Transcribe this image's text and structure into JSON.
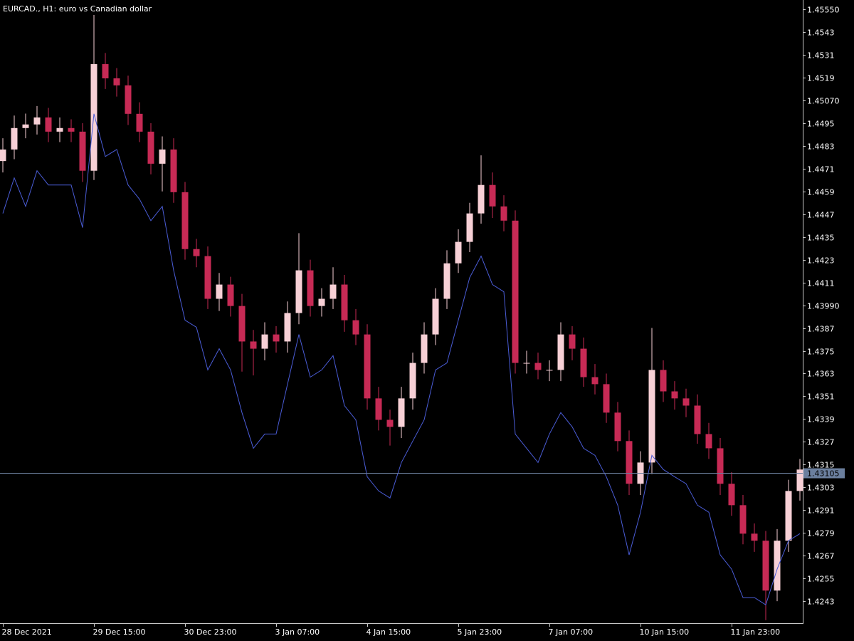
{
  "chart_data": {
    "type": "candlestick",
    "title": "EURCAD., H1:  euro vs Canadian dollar",
    "x": [
      0,
      4,
      8,
      12,
      16,
      20,
      24,
      28,
      32,
      36,
      40,
      44,
      48,
      52,
      56,
      60,
      64,
      68,
      72,
      76,
      80,
      84,
      88,
      92,
      96,
      100,
      104,
      108,
      112,
      116,
      120,
      124,
      128,
      132,
      136,
      140,
      144,
      148,
      152,
      156,
      160,
      164,
      168,
      172,
      176,
      180,
      184,
      188,
      192,
      196,
      200,
      204,
      208,
      212,
      216,
      220,
      224,
      228,
      232,
      236,
      240,
      244,
      248,
      252,
      256,
      260,
      264,
      268,
      272,
      276,
      280
    ],
    "open": [
      1.4475,
      1.44811,
      1.44924,
      1.44943,
      1.4498,
      1.44905,
      1.44924,
      1.44905,
      1.44699,
      1.45261,
      1.45186,
      1.45149,
      1.44999,
      1.44905,
      1.44736,
      1.44811,
      1.44586,
      1.44286,
      1.44249,
      1.44024,
      1.44099,
      1.43986,
      1.43799,
      1.43761,
      1.43836,
      1.43799,
      1.43949,
      1.44174,
      1.43986,
      1.44024,
      1.44099,
      1.43911,
      1.43836,
      1.43499,
      1.43386,
      1.43349,
      1.43499,
      1.43686,
      1.43836,
      1.44024,
      1.44211,
      1.44324,
      1.44474,
      1.44624,
      1.44511,
      1.44436,
      1.43686,
      1.43686,
      1.43649,
      1.43649,
      1.43836,
      1.43761,
      1.43611,
      1.43574,
      1.43424,
      1.43274,
      1.43049,
      1.43161,
      1.43649,
      1.43536,
      1.43499,
      1.43461,
      1.43311,
      1.43236,
      1.43049,
      1.42936,
      1.42786,
      1.42749,
      1.42486,
      1.42749,
      1.43011
    ],
    "high": [
      1.4487,
      1.4499,
      1.45,
      1.4504,
      1.4503,
      1.4498,
      1.4497,
      1.4495,
      1.4552,
      1.4532,
      1.4524,
      1.452,
      1.4506,
      1.4495,
      1.4488,
      1.4487,
      1.4464,
      1.4434,
      1.443,
      1.4416,
      1.4414,
      1.4405,
      1.4386,
      1.439,
      1.4388,
      1.4401,
      1.4437,
      1.4423,
      1.4408,
      1.4419,
      1.4415,
      1.4397,
      1.4389,
      1.4356,
      1.4344,
      1.4356,
      1.4374,
      1.439,
      1.4408,
      1.4428,
      1.4439,
      1.4453,
      1.4478,
      1.4469,
      1.4457,
      1.4449,
      1.4375,
      1.4374,
      1.437,
      1.439,
      1.4388,
      1.4382,
      1.4368,
      1.4363,
      1.4348,
      1.4333,
      1.4322,
      1.4387,
      1.437,
      1.4359,
      1.4355,
      1.4352,
      1.4337,
      1.4329,
      1.4311,
      1.4299,
      1.4284,
      1.428,
      1.4281,
      1.4307,
      1.4318
    ],
    "low": [
      1.4469,
      1.4476,
      1.4487,
      1.4489,
      1.4485,
      1.4485,
      1.4485,
      1.4464,
      1.4465,
      1.4513,
      1.4509,
      1.4494,
      1.4485,
      1.4468,
      1.4459,
      1.4453,
      1.4423,
      1.4419,
      1.4397,
      1.4396,
      1.4393,
      1.4364,
      1.4362,
      1.437,
      1.4374,
      1.4374,
      1.4389,
      1.4393,
      1.4393,
      1.4397,
      1.4385,
      1.4378,
      1.4344,
      1.4333,
      1.4325,
      1.4329,
      1.4344,
      1.4363,
      1.4378,
      1.4397,
      1.4416,
      1.4427,
      1.4442,
      1.4445,
      1.4438,
      1.4363,
      1.4363,
      1.436,
      1.4359,
      1.4359,
      1.437,
      1.4356,
      1.4352,
      1.4337,
      1.4322,
      1.4299,
      1.4299,
      1.431,
      1.4348,
      1.4344,
      1.434,
      1.4326,
      1.4318,
      1.4299,
      1.4288,
      1.4273,
      1.4269,
      1.4233,
      1.4243,
      1.4269,
      1.4296
    ],
    "close": [
      1.44811,
      1.44924,
      1.44943,
      1.4498,
      1.44905,
      1.44924,
      1.44905,
      1.44699,
      1.45261,
      1.45186,
      1.45149,
      1.44999,
      1.44905,
      1.44736,
      1.44811,
      1.44586,
      1.44286,
      1.44249,
      1.44024,
      1.44099,
      1.43986,
      1.43799,
      1.43761,
      1.43836,
      1.43799,
      1.43949,
      1.44174,
      1.43986,
      1.44024,
      1.44099,
      1.43911,
      1.43836,
      1.43499,
      1.43386,
      1.43349,
      1.43499,
      1.43686,
      1.43836,
      1.44024,
      1.44211,
      1.44324,
      1.44474,
      1.44624,
      1.44511,
      1.44436,
      1.43686,
      1.43686,
      1.43649,
      1.43649,
      1.43836,
      1.43761,
      1.43611,
      1.43574,
      1.43424,
      1.43274,
      1.43049,
      1.43161,
      1.43649,
      1.43536,
      1.43499,
      1.43461,
      1.43311,
      1.43236,
      1.43049,
      1.42936,
      1.42786,
      1.42749,
      1.42486,
      1.42749,
      1.43011,
      1.43124
    ],
    "up_color": "#f7d0d6",
    "down_color": "#c72a55",
    "line": {
      "color": "#4a5cd6",
      "values": [
        1.44474,
        1.44661,
        1.44511,
        1.44699,
        1.44624,
        1.44624,
        1.44624,
        1.44399,
        1.44999,
        1.44774,
        1.44811,
        1.44624,
        1.44549,
        1.44436,
        1.44511,
        1.44174,
        1.43911,
        1.43874,
        1.43649,
        1.43761,
        1.43649,
        1.43424,
        1.43236,
        1.43311,
        1.43311,
        1.43574,
        1.43836,
        1.43611,
        1.43649,
        1.43724,
        1.43461,
        1.43386,
        1.43086,
        1.43011,
        1.42974,
        1.43161,
        1.43274,
        1.43386,
        1.43649,
        1.43686,
        1.43911,
        1.44136,
        1.44249,
        1.44099,
        1.44061,
        1.43311,
        1.43236,
        1.43161,
        1.43311,
        1.43424,
        1.43349,
        1.43236,
        1.43199,
        1.43086,
        1.42936,
        1.42674,
        1.42899,
        1.43199,
        1.43124,
        1.43086,
        1.43049,
        1.42936,
        1.42899,
        1.42674,
        1.42599,
        1.42449,
        1.42449,
        1.42411,
        1.42599,
        1.42749,
        1.42786
      ]
    },
    "current_price": 1.43105,
    "current_color": "#6b7f9e",
    "xlim": [
      -1,
      281
    ],
    "xticks": [
      {
        "value": 0,
        "label": "28 Dec 2021"
      },
      {
        "value": 32,
        "label": "29 Dec 15:00"
      },
      {
        "value": 64,
        "label": "30 Dec 23:00"
      },
      {
        "value": 96,
        "label": "3 Jan 07:00"
      },
      {
        "value": 128,
        "label": "4 Jan 15:00"
      },
      {
        "value": 160,
        "label": "5 Jan 23:00"
      },
      {
        "value": 192,
        "label": "7 Jan 07:00"
      },
      {
        "value": 224,
        "label": "10 Jan 15:00"
      },
      {
        "value": 256,
        "label": "11 Jan 23:00"
      }
    ],
    "ylim": [
      1.42314,
      1.45599
    ],
    "yticks": [
      {
        "value": 1.4555,
        "label": "1.45550"
      },
      1.4543,
      1.4531,
      1.4519,
      {
        "value": 1.4507,
        "label": "1.45070"
      },
      1.4495,
      1.4483,
      1.4471,
      1.4459,
      1.4447,
      1.4435,
      1.4423,
      1.4411,
      {
        "value": 1.4399,
        "label": "1.43990"
      },
      1.4387,
      1.4375,
      1.4363,
      1.4351,
      1.4339,
      1.4327,
      1.4315,
      1.4303,
      1.4291,
      1.4279,
      1.4267,
      1.4255,
      1.4243
    ]
  }
}
